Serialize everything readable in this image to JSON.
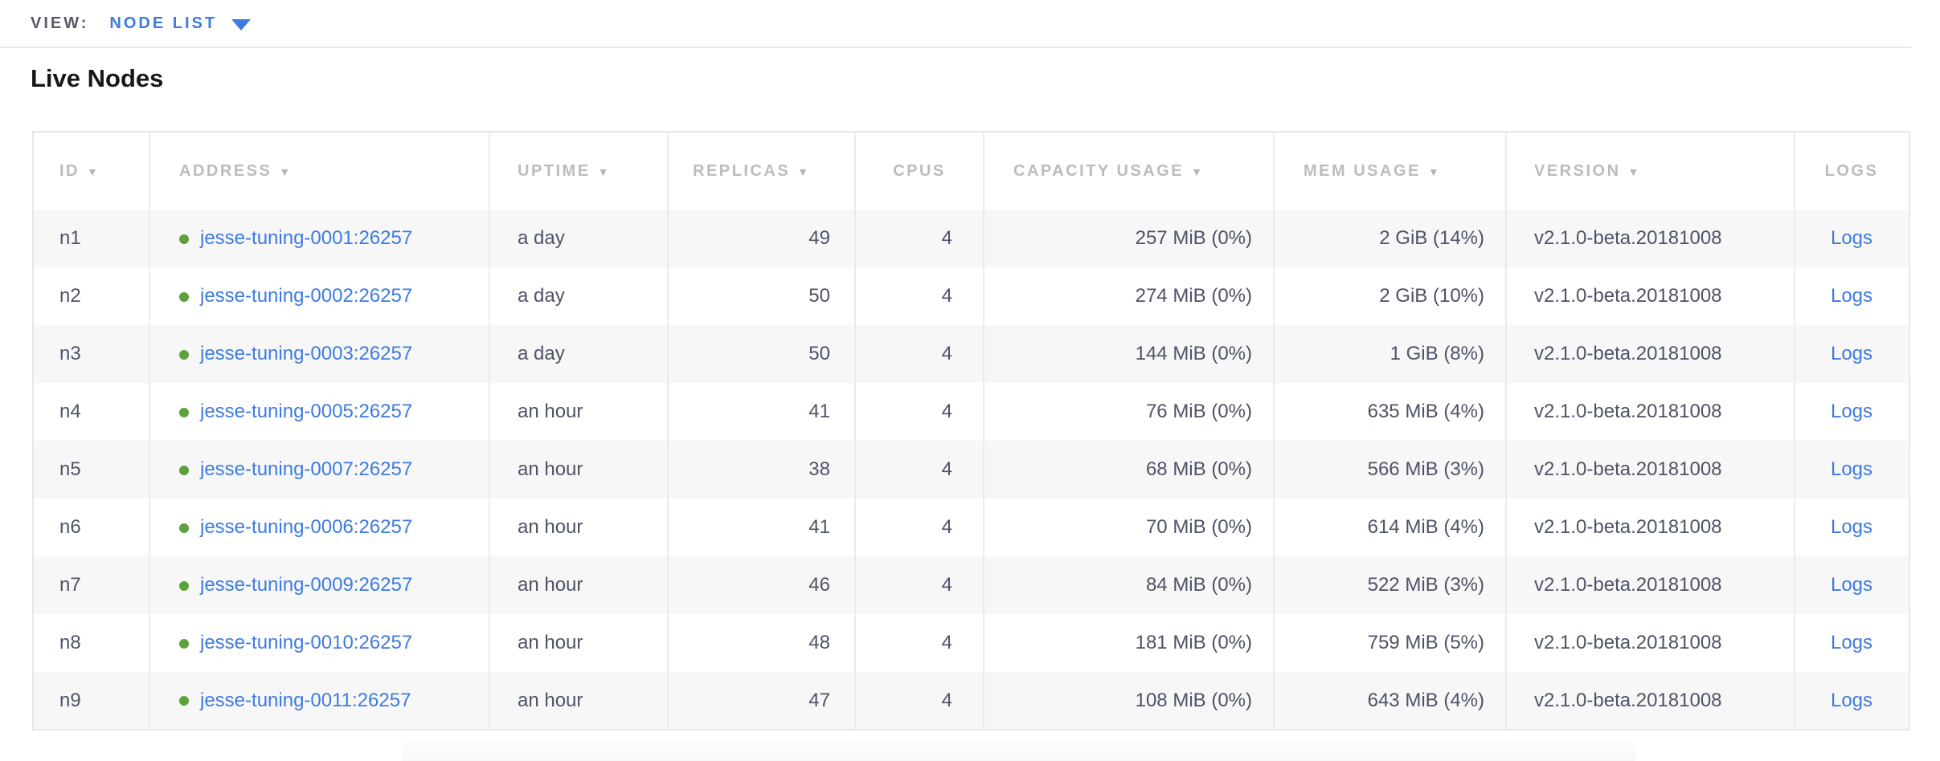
{
  "view_bar": {
    "label": "VIEW:",
    "selected": "NODE LIST"
  },
  "page": {
    "title": "Live Nodes"
  },
  "table": {
    "columns": [
      {
        "key": "id",
        "label": "ID",
        "sortable": true
      },
      {
        "key": "address",
        "label": "ADDRESS",
        "sortable": true
      },
      {
        "key": "uptime",
        "label": "UPTIME",
        "sortable": true
      },
      {
        "key": "replicas",
        "label": "REPLICAS",
        "sortable": true
      },
      {
        "key": "cpus",
        "label": "CPUS",
        "sortable": false
      },
      {
        "key": "capacity",
        "label": "CAPACITY USAGE",
        "sortable": true
      },
      {
        "key": "mem",
        "label": "MEM USAGE",
        "sortable": true
      },
      {
        "key": "version",
        "label": "VERSION",
        "sortable": true
      },
      {
        "key": "logs",
        "label": "LOGS",
        "sortable": false
      }
    ],
    "rows": [
      {
        "id": "n1",
        "address": "jesse-tuning-0001:26257",
        "status": "healthy",
        "uptime": "a day",
        "replicas": "49",
        "cpus": "4",
        "capacity": "257 MiB (0%)",
        "mem": "2 GiB (14%)",
        "version": "v2.1.0-beta.20181008",
        "logs": "Logs"
      },
      {
        "id": "n2",
        "address": "jesse-tuning-0002:26257",
        "status": "healthy",
        "uptime": "a day",
        "replicas": "50",
        "cpus": "4",
        "capacity": "274 MiB (0%)",
        "mem": "2 GiB (10%)",
        "version": "v2.1.0-beta.20181008",
        "logs": "Logs"
      },
      {
        "id": "n3",
        "address": "jesse-tuning-0003:26257",
        "status": "healthy",
        "uptime": "a day",
        "replicas": "50",
        "cpus": "4",
        "capacity": "144 MiB (0%)",
        "mem": "1 GiB (8%)",
        "version": "v2.1.0-beta.20181008",
        "logs": "Logs"
      },
      {
        "id": "n4",
        "address": "jesse-tuning-0005:26257",
        "status": "healthy",
        "uptime": "an hour",
        "replicas": "41",
        "cpus": "4",
        "capacity": "76 MiB (0%)",
        "mem": "635 MiB (4%)",
        "version": "v2.1.0-beta.20181008",
        "logs": "Logs"
      },
      {
        "id": "n5",
        "address": "jesse-tuning-0007:26257",
        "status": "healthy",
        "uptime": "an hour",
        "replicas": "38",
        "cpus": "4",
        "capacity": "68 MiB (0%)",
        "mem": "566 MiB (3%)",
        "version": "v2.1.0-beta.20181008",
        "logs": "Logs"
      },
      {
        "id": "n6",
        "address": "jesse-tuning-0006:26257",
        "status": "healthy",
        "uptime": "an hour",
        "replicas": "41",
        "cpus": "4",
        "capacity": "70 MiB (0%)",
        "mem": "614 MiB (4%)",
        "version": "v2.1.0-beta.20181008",
        "logs": "Logs"
      },
      {
        "id": "n7",
        "address": "jesse-tuning-0009:26257",
        "status": "healthy",
        "uptime": "an hour",
        "replicas": "46",
        "cpus": "4",
        "capacity": "84 MiB (0%)",
        "mem": "522 MiB (3%)",
        "version": "v2.1.0-beta.20181008",
        "logs": "Logs"
      },
      {
        "id": "n8",
        "address": "jesse-tuning-0010:26257",
        "status": "healthy",
        "uptime": "an hour",
        "replicas": "48",
        "cpus": "4",
        "capacity": "181 MiB (0%)",
        "mem": "759 MiB (5%)",
        "version": "v2.1.0-beta.20181008",
        "logs": "Logs"
      },
      {
        "id": "n9",
        "address": "jesse-tuning-0011:26257",
        "status": "healthy",
        "uptime": "an hour",
        "replicas": "47",
        "cpus": "4",
        "capacity": "108 MiB (0%)",
        "mem": "643 MiB (4%)",
        "version": "v2.1.0-beta.20181008",
        "logs": "Logs"
      }
    ]
  },
  "icons": {
    "sort_desc": "▼",
    "view_caret": "caret-down",
    "node_status": "green-dot"
  },
  "colors": {
    "link_blue": "#3d7be0",
    "status_green": "#5ca13a",
    "header_gray": "#babcc0",
    "cell_text": "#4e5366",
    "row_alt_bg": "#f7f7f7",
    "border": "#e7e7e7"
  }
}
